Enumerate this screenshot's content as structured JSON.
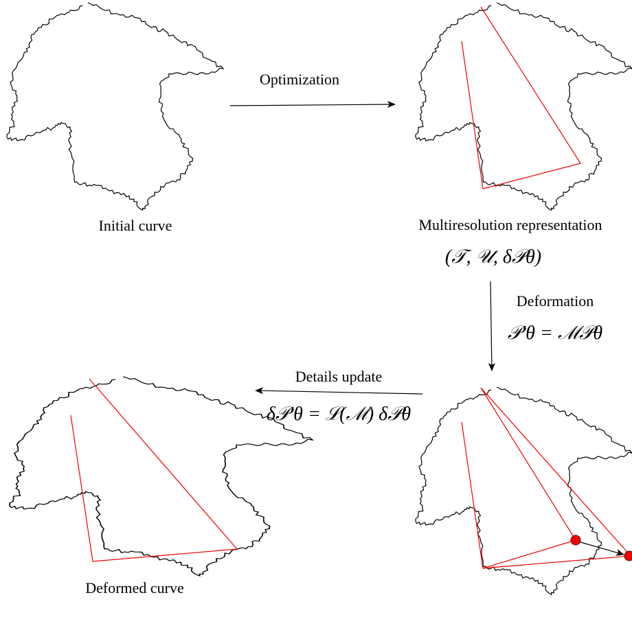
{
  "labels": {
    "initial": "Initial curve",
    "optimization": "Optimization",
    "multiresolution": "Multiresolution representation",
    "representation_formula": "(𝒯, 𝒰, δ𝒫θ)",
    "deformation": "Deformation",
    "deformation_formula": "𝒫′θ = ℳ𝒫θ",
    "details_update": "Details update",
    "details_formula": "δ𝒫′θ = ℒ(ℳ) δ𝒫θ",
    "deformed": "Deformed curve"
  }
}
